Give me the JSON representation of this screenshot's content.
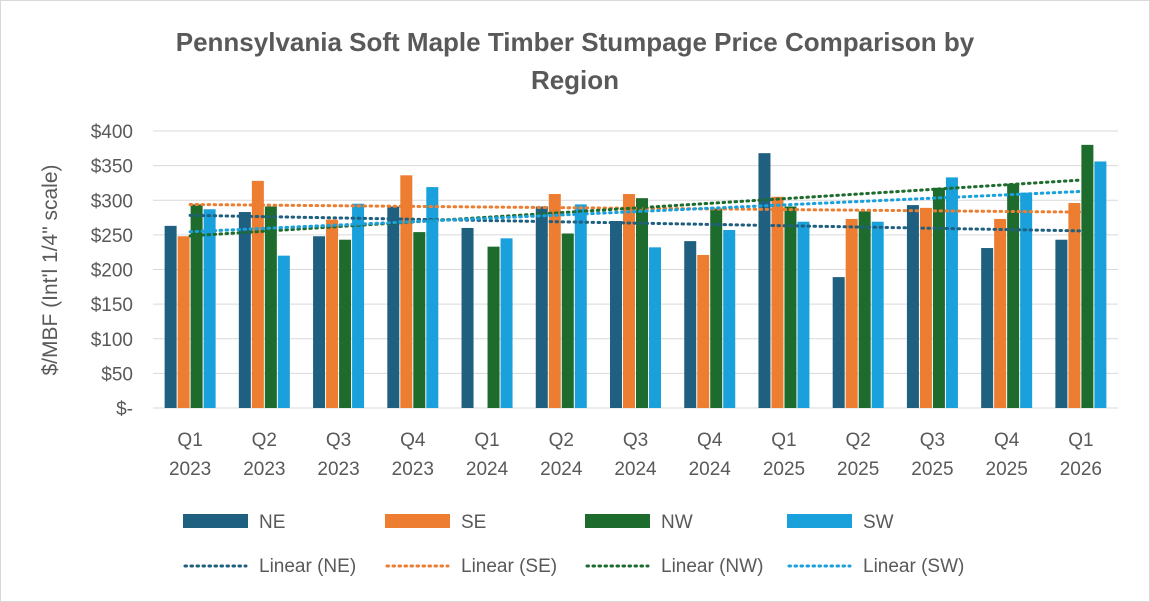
{
  "chart_data": {
    "type": "bar",
    "title_line1": "Pennsylvania Soft Maple Timber Stumpage Price Comparison by",
    "title_line2": "Region",
    "ylabel": "$/MBF (Int'l 1/4\" scale)",
    "xlabel": "",
    "ylim": [
      0,
      400
    ],
    "yticks": [
      {
        "value": 400,
        "label": "$400"
      },
      {
        "value": 350,
        "label": "$350"
      },
      {
        "value": 300,
        "label": "$300"
      },
      {
        "value": 250,
        "label": "$250"
      },
      {
        "value": 200,
        "label": "$200"
      },
      {
        "value": 150,
        "label": "$150"
      },
      {
        "value": 100,
        "label": "$100"
      },
      {
        "value": 50,
        "label": "$50"
      },
      {
        "value": 0,
        "label": "$-"
      }
    ],
    "grid": true,
    "legend_position": "bottom",
    "categories": [
      {
        "quarter": "Q1",
        "year": "2023"
      },
      {
        "quarter": "Q2",
        "year": "2023"
      },
      {
        "quarter": "Q3",
        "year": "2023"
      },
      {
        "quarter": "Q4",
        "year": "2023"
      },
      {
        "quarter": "Q1",
        "year": "2024"
      },
      {
        "quarter": "Q2",
        "year": "2024"
      },
      {
        "quarter": "Q3",
        "year": "2024"
      },
      {
        "quarter": "Q4",
        "year": "2024"
      },
      {
        "quarter": "Q1",
        "year": "2025"
      },
      {
        "quarter": "Q2",
        "year": "2025"
      },
      {
        "quarter": "Q3",
        "year": "2025"
      },
      {
        "quarter": "Q4",
        "year": "2025"
      },
      {
        "quarter": "Q1",
        "year": "2026"
      }
    ],
    "series": [
      {
        "name": "NE",
        "color": "#1f5f7f",
        "values": [
          263,
          283,
          248,
          291,
          260,
          291,
          270,
          241,
          368,
          189,
          293,
          231,
          243
        ]
      },
      {
        "name": "SE",
        "color": "#ed7d31",
        "values": [
          248,
          328,
          272,
          336,
          null,
          309,
          309,
          221,
          305,
          273,
          289,
          273,
          296
        ]
      },
      {
        "name": "NW",
        "color": "#1e6b2e",
        "values": [
          294,
          291,
          243,
          254,
          233,
          252,
          303,
          288,
          291,
          284,
          318,
          324,
          380
        ]
      },
      {
        "name": "SW",
        "color": "#1aa0db",
        "values": [
          287,
          220,
          295,
          319,
          245,
          294,
          232,
          257,
          269,
          269,
          333,
          311,
          356
        ]
      }
    ],
    "trendlines": [
      {
        "name": "Linear (NE)",
        "color": "#1f5f7f",
        "series": "NE"
      },
      {
        "name": "Linear (SE)",
        "color": "#ed7d31",
        "series": "SE"
      },
      {
        "name": "Linear (NW)",
        "color": "#1e6b2e",
        "series": "NW"
      },
      {
        "name": "Linear (SW)",
        "color": "#1aa0db",
        "series": "SW"
      }
    ]
  }
}
